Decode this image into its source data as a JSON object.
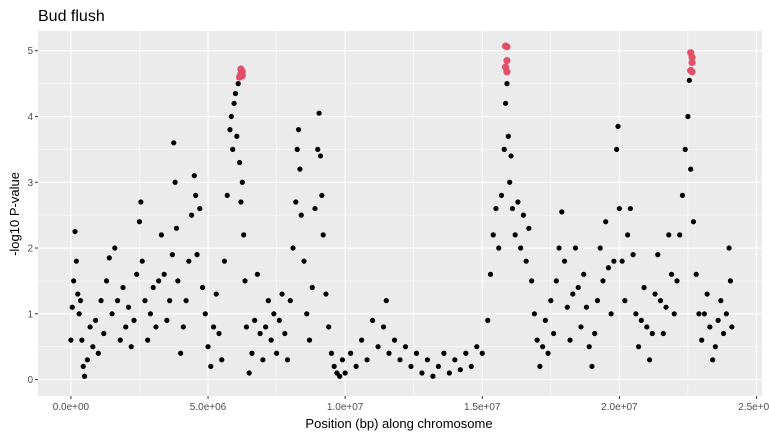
{
  "chart_data": {
    "type": "scatter",
    "title": "Bud flush",
    "xlabel": "Position (bp) along chromosome",
    "ylabel": "-log10 P-value",
    "xlim": [
      -1200000,
      25200000
    ],
    "ylim": [
      -0.25,
      5.3
    ],
    "x_ticks": [
      0,
      5000000,
      10000000,
      15000000,
      20000000,
      25000000
    ],
    "x_tick_labels": [
      "0.0e+00",
      "5.0e+06",
      "1.0e+07",
      "1.5e+07",
      "2.0e+07",
      "2.5e+07"
    ],
    "y_ticks": [
      0,
      1,
      2,
      3,
      4,
      5
    ],
    "y_tick_labels": [
      "0",
      "1",
      "2",
      "3",
      "4",
      "5"
    ],
    "grid": true,
    "legend": "none",
    "colors": {
      "panel": "#ebebeb",
      "grid": "#ffffff",
      "points": "#000000",
      "highlight": "#e0506a"
    },
    "series": [
      {
        "points": [
          [
            0,
            0.6
          ],
          [
            50000,
            1.1
          ],
          [
            100000,
            1.5
          ],
          [
            150000,
            2.25
          ],
          [
            200000,
            1.8
          ],
          [
            250000,
            1.3
          ],
          [
            300000,
            1.0
          ],
          [
            350000,
            1.2
          ],
          [
            400000,
            0.6
          ],
          [
            450000,
            0.2
          ],
          [
            500000,
            0.05
          ],
          [
            600000,
            0.3
          ],
          [
            700000,
            0.8
          ],
          [
            800000,
            0.5
          ],
          [
            900000,
            0.9
          ],
          [
            1000000,
            0.4
          ],
          [
            1100000,
            1.2
          ],
          [
            1200000,
            0.7
          ],
          [
            1300000,
            1.5
          ],
          [
            1400000,
            1.85
          ],
          [
            1500000,
            1.0
          ],
          [
            1600000,
            2.0
          ],
          [
            1700000,
            1.2
          ],
          [
            1800000,
            0.6
          ],
          [
            1900000,
            1.4
          ],
          [
            2000000,
            0.8
          ],
          [
            2100000,
            1.1
          ],
          [
            2200000,
            0.5
          ],
          [
            2300000,
            0.9
          ],
          [
            2400000,
            1.6
          ],
          [
            2500000,
            2.4
          ],
          [
            2550000,
            2.7
          ],
          [
            2600000,
            1.8
          ],
          [
            2700000,
            1.2
          ],
          [
            2800000,
            0.6
          ],
          [
            2900000,
            1.0
          ],
          [
            3000000,
            1.4
          ],
          [
            3100000,
            0.8
          ],
          [
            3200000,
            1.5
          ],
          [
            3300000,
            2.2
          ],
          [
            3400000,
            1.6
          ],
          [
            3500000,
            0.9
          ],
          [
            3600000,
            1.2
          ],
          [
            3700000,
            1.9
          ],
          [
            3750000,
            3.6
          ],
          [
            3800000,
            3.0
          ],
          [
            3850000,
            2.3
          ],
          [
            3900000,
            1.5
          ],
          [
            4000000,
            0.4
          ],
          [
            4100000,
            0.8
          ],
          [
            4200000,
            1.2
          ],
          [
            4300000,
            1.8
          ],
          [
            4400000,
            2.5
          ],
          [
            4500000,
            3.1
          ],
          [
            4550000,
            2.8
          ],
          [
            4600000,
            1.9
          ],
          [
            4700000,
            2.6
          ],
          [
            4800000,
            1.4
          ],
          [
            4900000,
            1.0
          ],
          [
            5000000,
            0.5
          ],
          [
            5100000,
            0.2
          ],
          [
            5200000,
            0.8
          ],
          [
            5300000,
            1.3
          ],
          [
            5400000,
            0.7
          ],
          [
            5500000,
            0.3
          ],
          [
            5600000,
            1.8
          ],
          [
            5700000,
            2.8
          ],
          [
            5800000,
            3.8
          ],
          [
            5850000,
            4.0
          ],
          [
            5900000,
            3.5
          ],
          [
            5950000,
            4.2
          ],
          [
            6000000,
            4.35
          ],
          [
            6050000,
            3.7
          ],
          [
            6100000,
            4.5
          ],
          [
            6150000,
            3.3
          ],
          [
            6200000,
            2.7
          ],
          [
            6250000,
            3.0
          ],
          [
            6300000,
            2.2
          ],
          [
            6350000,
            1.5
          ],
          [
            6400000,
            0.8
          ],
          [
            6500000,
            0.1
          ],
          [
            6600000,
            0.4
          ],
          [
            6700000,
            0.9
          ],
          [
            6800000,
            1.6
          ],
          [
            6900000,
            0.7
          ],
          [
            7000000,
            0.3
          ],
          [
            7100000,
            0.8
          ],
          [
            7200000,
            1.2
          ],
          [
            7300000,
            0.6
          ],
          [
            7400000,
            1.0
          ],
          [
            7500000,
            0.4
          ],
          [
            7600000,
            0.9
          ],
          [
            7700000,
            1.3
          ],
          [
            7800000,
            0.7
          ],
          [
            7900000,
            0.3
          ],
          [
            8000000,
            1.2
          ],
          [
            8100000,
            2.0
          ],
          [
            8200000,
            2.7
          ],
          [
            8250000,
            3.5
          ],
          [
            8300000,
            3.8
          ],
          [
            8350000,
            3.2
          ],
          [
            8400000,
            2.5
          ],
          [
            8500000,
            1.8
          ],
          [
            8600000,
            1.0
          ],
          [
            8700000,
            0.6
          ],
          [
            8800000,
            1.4
          ],
          [
            8900000,
            2.6
          ],
          [
            9000000,
            3.5
          ],
          [
            9050000,
            4.05
          ],
          [
            9100000,
            3.4
          ],
          [
            9150000,
            2.8
          ],
          [
            9200000,
            2.2
          ],
          [
            9300000,
            1.3
          ],
          [
            9400000,
            0.8
          ],
          [
            9500000,
            0.4
          ],
          [
            9600000,
            0.2
          ],
          [
            9700000,
            0.1
          ],
          [
            9800000,
            0.05
          ],
          [
            9900000,
            0.3
          ],
          [
            10000000,
            0.1
          ],
          [
            10200000,
            0.4
          ],
          [
            10400000,
            0.2
          ],
          [
            10600000,
            0.6
          ],
          [
            10800000,
            0.3
          ],
          [
            11000000,
            0.9
          ],
          [
            11200000,
            0.5
          ],
          [
            11400000,
            0.8
          ],
          [
            11500000,
            1.2
          ],
          [
            11600000,
            0.4
          ],
          [
            11800000,
            0.6
          ],
          [
            12000000,
            0.3
          ],
          [
            12200000,
            0.5
          ],
          [
            12400000,
            0.2
          ],
          [
            12600000,
            0.4
          ],
          [
            12800000,
            0.1
          ],
          [
            13000000,
            0.3
          ],
          [
            13200000,
            0.05
          ],
          [
            13400000,
            0.2
          ],
          [
            13600000,
            0.4
          ],
          [
            13800000,
            0.1
          ],
          [
            14000000,
            0.3
          ],
          [
            14200000,
            0.15
          ],
          [
            14400000,
            0.4
          ],
          [
            14600000,
            0.2
          ],
          [
            14800000,
            0.5
          ],
          [
            15000000,
            0.4
          ],
          [
            15200000,
            0.9
          ],
          [
            15300000,
            1.6
          ],
          [
            15400000,
            2.2
          ],
          [
            15500000,
            2.6
          ],
          [
            15600000,
            2.0
          ],
          [
            15700000,
            2.8
          ],
          [
            15800000,
            3.5
          ],
          [
            15850000,
            4.2
          ],
          [
            15900000,
            4.5
          ],
          [
            15950000,
            3.7
          ],
          [
            16000000,
            3.0
          ],
          [
            16050000,
            3.4
          ],
          [
            16100000,
            2.6
          ],
          [
            16200000,
            2.2
          ],
          [
            16300000,
            2.7
          ],
          [
            16400000,
            2.0
          ],
          [
            16500000,
            2.5
          ],
          [
            16600000,
            1.8
          ],
          [
            16700000,
            2.3
          ],
          [
            16800000,
            1.5
          ],
          [
            16900000,
            1.0
          ],
          [
            17000000,
            0.6
          ],
          [
            17100000,
            0.2
          ],
          [
            17200000,
            0.5
          ],
          [
            17300000,
            0.9
          ],
          [
            17400000,
            0.4
          ],
          [
            17500000,
            1.2
          ],
          [
            17600000,
            0.7
          ],
          [
            17700000,
            1.5
          ],
          [
            17800000,
            2.0
          ],
          [
            17900000,
            2.55
          ],
          [
            18000000,
            1.8
          ],
          [
            18100000,
            1.1
          ],
          [
            18200000,
            0.6
          ],
          [
            18300000,
            1.3
          ],
          [
            18400000,
            2.0
          ],
          [
            18500000,
            1.4
          ],
          [
            18600000,
            0.8
          ],
          [
            18700000,
            1.6
          ],
          [
            18800000,
            1.1
          ],
          [
            18900000,
            0.5
          ],
          [
            19000000,
            0.2
          ],
          [
            19100000,
            0.7
          ],
          [
            19200000,
            1.2
          ],
          [
            19300000,
            2.0
          ],
          [
            19400000,
            1.5
          ],
          [
            19500000,
            2.4
          ],
          [
            19600000,
            1.7
          ],
          [
            19700000,
            1.0
          ],
          [
            19800000,
            1.8
          ],
          [
            19900000,
            3.5
          ],
          [
            19950000,
            3.85
          ],
          [
            20000000,
            2.6
          ],
          [
            20100000,
            1.8
          ],
          [
            20200000,
            1.2
          ],
          [
            20300000,
            2.2
          ],
          [
            20400000,
            2.6
          ],
          [
            20500000,
            1.9
          ],
          [
            20600000,
            1.0
          ],
          [
            20700000,
            0.5
          ],
          [
            20800000,
            0.9
          ],
          [
            20900000,
            1.4
          ],
          [
            21000000,
            0.8
          ],
          [
            21100000,
            0.3
          ],
          [
            21200000,
            0.7
          ],
          [
            21300000,
            1.3
          ],
          [
            21400000,
            1.9
          ],
          [
            21500000,
            1.2
          ],
          [
            21600000,
            0.7
          ],
          [
            21700000,
            1.1
          ],
          [
            21800000,
            2.2
          ],
          [
            21900000,
            1.6
          ],
          [
            22000000,
            1.0
          ],
          [
            22100000,
            1.5
          ],
          [
            22200000,
            2.2
          ],
          [
            22300000,
            2.8
          ],
          [
            22400000,
            3.5
          ],
          [
            22500000,
            4.0
          ],
          [
            22550000,
            4.55
          ],
          [
            22600000,
            3.2
          ],
          [
            22700000,
            2.4
          ],
          [
            22800000,
            1.6
          ],
          [
            22900000,
            1.0
          ],
          [
            23000000,
            0.6
          ],
          [
            23100000,
            1.0
          ],
          [
            23200000,
            1.3
          ],
          [
            23300000,
            0.8
          ],
          [
            23400000,
            0.3
          ],
          [
            23500000,
            0.5
          ],
          [
            23600000,
            0.9
          ],
          [
            23700000,
            1.2
          ],
          [
            23800000,
            0.7
          ],
          [
            23900000,
            1.0
          ],
          [
            24000000,
            2.0
          ],
          [
            24050000,
            1.5
          ],
          [
            24100000,
            0.8
          ]
        ]
      },
      {
        "highlight": true,
        "points": [
          [
            6150000,
            4.6
          ],
          [
            6200000,
            4.65
          ],
          [
            6200000,
            4.72
          ],
          [
            6250000,
            4.68
          ],
          [
            6250000,
            4.62
          ],
          [
            15850000,
            5.07
          ],
          [
            15900000,
            5.06
          ],
          [
            15900000,
            4.85
          ],
          [
            15850000,
            4.75
          ],
          [
            15900000,
            4.68
          ],
          [
            22600000,
            4.97
          ],
          [
            22650000,
            4.9
          ],
          [
            22650000,
            4.82
          ],
          [
            22600000,
            4.7
          ],
          [
            22650000,
            4.68
          ]
        ]
      }
    ]
  }
}
